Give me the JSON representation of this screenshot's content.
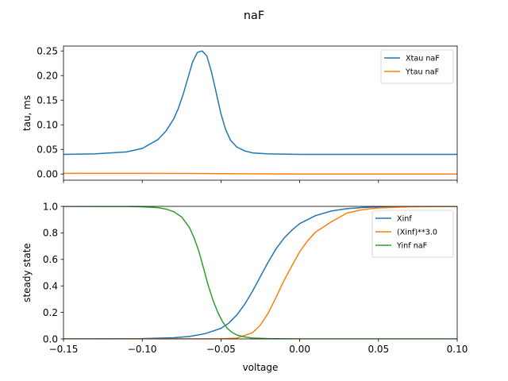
{
  "figure": {
    "title": "naF"
  },
  "chart_data": [
    {
      "type": "line",
      "title": "",
      "xlabel": "",
      "ylabel": "tau, ms",
      "xlim": [
        -0.15,
        0.1
      ],
      "ylim": [
        -0.0125,
        0.26
      ],
      "xticks": [
        -0.15,
        -0.1,
        -0.05,
        0.0,
        0.05,
        0.1
      ],
      "xtick_labels_visible": false,
      "yticks": [
        0.0,
        0.05,
        0.1,
        0.15,
        0.2,
        0.25
      ],
      "ytick_labels": [
        "0.00",
        "0.05",
        "0.10",
        "0.15",
        "0.20",
        "0.25"
      ],
      "grid": false,
      "legend": "top-right",
      "series": [
        {
          "name": "Xtau naF",
          "color": "#1f77b4",
          "x": [
            -0.15,
            -0.13,
            -0.11,
            -0.1,
            -0.09,
            -0.085,
            -0.08,
            -0.077,
            -0.074,
            -0.071,
            -0.068,
            -0.065,
            -0.062,
            -0.059,
            -0.056,
            -0.053,
            -0.05,
            -0.047,
            -0.044,
            -0.04,
            -0.035,
            -0.03,
            -0.02,
            0.0,
            0.05,
            0.1
          ],
          "y": [
            0.04,
            0.041,
            0.045,
            0.052,
            0.07,
            0.087,
            0.112,
            0.134,
            0.162,
            0.195,
            0.228,
            0.247,
            0.25,
            0.24,
            0.207,
            0.165,
            0.122,
            0.09,
            0.069,
            0.055,
            0.047,
            0.043,
            0.041,
            0.04,
            0.04,
            0.04
          ]
        },
        {
          "name": "Ytau naF",
          "color": "#ff7f0e",
          "x": [
            -0.15,
            -0.1,
            -0.07,
            -0.05,
            -0.03,
            -0.01,
            0.0,
            0.05,
            0.1
          ],
          "y": [
            0.0015,
            0.0014,
            0.0012,
            0.0009,
            0.0005,
            0.0002,
            0.0001,
            0.0001,
            0.0001
          ]
        }
      ]
    },
    {
      "type": "line",
      "title": "",
      "xlabel": "voltage",
      "ylabel": "steady state",
      "xlim": [
        -0.15,
        0.1
      ],
      "ylim": [
        0.0,
        1.0
      ],
      "xticks": [
        -0.15,
        -0.1,
        -0.05,
        0.0,
        0.05,
        0.1
      ],
      "xtick_labels": [
        "−0.15",
        "−0.10",
        "−0.05",
        "0.00",
        "0.05",
        "0.10"
      ],
      "yticks": [
        0.0,
        0.2,
        0.4,
        0.6,
        0.8,
        1.0
      ],
      "ytick_labels": [
        "0.0",
        "0.2",
        "0.4",
        "0.6",
        "0.8",
        "1.0"
      ],
      "grid": false,
      "legend": "top-right",
      "series": [
        {
          "name": "Xinf",
          "color": "#1f77b4",
          "x": [
            -0.15,
            -0.1,
            -0.08,
            -0.07,
            -0.06,
            -0.05,
            -0.045,
            -0.04,
            -0.035,
            -0.03,
            -0.025,
            -0.02,
            -0.015,
            -0.01,
            -0.005,
            0.0,
            0.01,
            0.02,
            0.03,
            0.04,
            0.05,
            0.07,
            0.1
          ],
          "y": [
            0.0,
            0.002,
            0.009,
            0.019,
            0.04,
            0.08,
            0.12,
            0.18,
            0.26,
            0.36,
            0.47,
            0.58,
            0.68,
            0.76,
            0.82,
            0.87,
            0.93,
            0.965,
            0.983,
            0.992,
            0.996,
            0.999,
            1.0
          ]
        },
        {
          "name": "(Xinf)**3.0",
          "color": "#ff7f0e",
          "x": [
            -0.15,
            -0.05,
            -0.04,
            -0.03,
            -0.025,
            -0.02,
            -0.015,
            -0.01,
            -0.005,
            0.0,
            0.005,
            0.01,
            0.02,
            0.03,
            0.04,
            0.05,
            0.07,
            0.1
          ],
          "y": [
            0.0,
            0.0005,
            0.006,
            0.047,
            0.104,
            0.195,
            0.314,
            0.44,
            0.551,
            0.658,
            0.74,
            0.805,
            0.883,
            0.95,
            0.976,
            0.988,
            0.997,
            1.0
          ]
        },
        {
          "name": "Yinf naF",
          "color": "#2ca02c",
          "x": [
            -0.15,
            -0.11,
            -0.1,
            -0.09,
            -0.085,
            -0.08,
            -0.075,
            -0.07,
            -0.067,
            -0.064,
            -0.061,
            -0.058,
            -0.055,
            -0.052,
            -0.049,
            -0.046,
            -0.043,
            -0.04,
            -0.035,
            -0.03,
            -0.02,
            0.0,
            0.1
          ],
          "y": [
            1.0,
            0.999,
            0.997,
            0.99,
            0.98,
            0.96,
            0.92,
            0.84,
            0.76,
            0.66,
            0.53,
            0.4,
            0.29,
            0.2,
            0.13,
            0.08,
            0.05,
            0.03,
            0.015,
            0.007,
            0.002,
            0.0,
            0.0
          ]
        }
      ]
    }
  ]
}
